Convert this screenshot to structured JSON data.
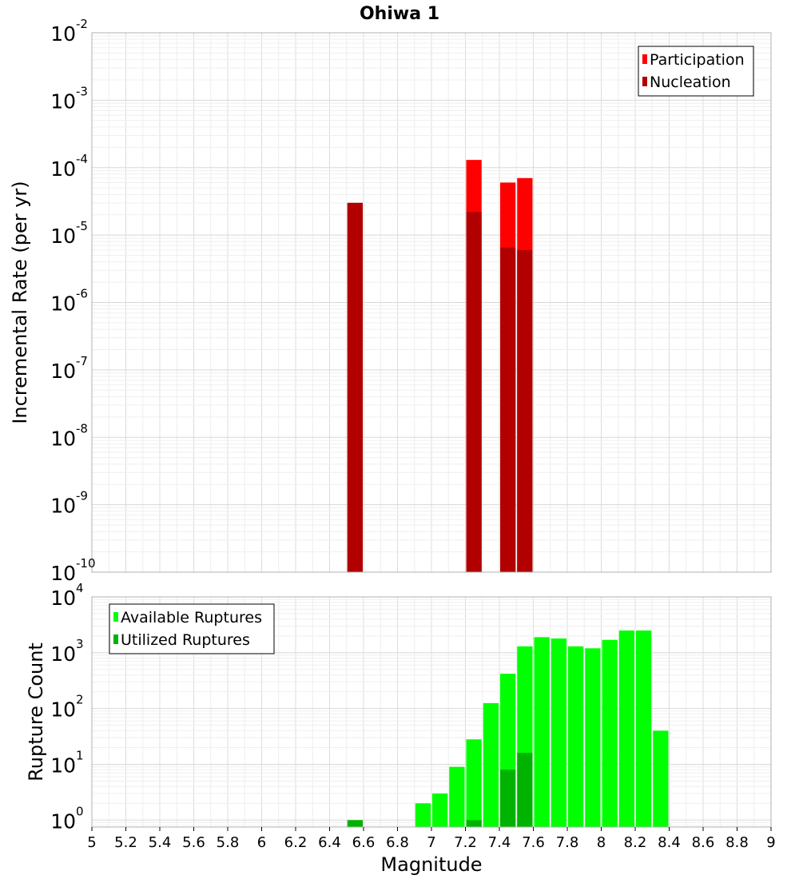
{
  "title": "Ohiwa 1",
  "chart_data": [
    {
      "type": "bar",
      "title": "Ohiwa 1",
      "xlabel": "Magnitude",
      "ylabel": "Incremental Rate (per yr)",
      "xlim": [
        5,
        9
      ],
      "ylim": [
        1e-10,
        0.01
      ],
      "yscale": "log",
      "ytick_exponents": [
        "-10",
        "-9",
        "-8",
        "-7",
        "-6",
        "-5",
        "-4",
        "-3",
        "-2"
      ],
      "ytick_base": "10",
      "bin_width": 0.1,
      "grid": true,
      "legend_position": "top-right",
      "series": [
        {
          "name": "Participation",
          "color": "#ff0000",
          "points": [
            {
              "x": 6.55,
              "y": 3e-05
            },
            {
              "x": 7.25,
              "y": 0.00013
            },
            {
              "x": 7.45,
              "y": 6e-05
            },
            {
              "x": 7.55,
              "y": 7e-05
            }
          ]
        },
        {
          "name": "Nucleation",
          "color": "#b20000",
          "points": [
            {
              "x": 6.55,
              "y": 3e-05
            },
            {
              "x": 7.25,
              "y": 2.2e-05
            },
            {
              "x": 7.45,
              "y": 6.5e-06
            },
            {
              "x": 7.55,
              "y": 6e-06
            }
          ]
        }
      ]
    },
    {
      "type": "bar",
      "xlabel": "Magnitude",
      "ylabel": "Rupture Count",
      "xlim": [
        5,
        9
      ],
      "ylim": [
        0.75,
        10000.0
      ],
      "yscale": "log",
      "ytick_exponents": [
        "0",
        "1",
        "2",
        "3",
        "4"
      ],
      "ytick_base": "10",
      "xticks": [
        "5",
        "5.2",
        "5.4",
        "5.6",
        "5.8",
        "6",
        "6.2",
        "6.4",
        "6.6",
        "6.8",
        "7",
        "7.2",
        "7.4",
        "7.6",
        "7.8",
        "8",
        "8.2",
        "8.4",
        "8.6",
        "8.8",
        "9"
      ],
      "bin_width": 0.1,
      "grid": true,
      "legend_position": "top-left",
      "series": [
        {
          "name": "Available Ruptures",
          "color": "#00ff00",
          "points": [
            {
              "x": 6.95,
              "y": 2
            },
            {
              "x": 7.05,
              "y": 3
            },
            {
              "x": 7.15,
              "y": 9
            },
            {
              "x": 7.25,
              "y": 28
            },
            {
              "x": 7.35,
              "y": 125
            },
            {
              "x": 7.45,
              "y": 420
            },
            {
              "x": 7.55,
              "y": 1300
            },
            {
              "x": 7.65,
              "y": 1900
            },
            {
              "x": 7.75,
              "y": 1800
            },
            {
              "x": 7.85,
              "y": 1300
            },
            {
              "x": 7.95,
              "y": 1200
            },
            {
              "x": 8.05,
              "y": 1700
            },
            {
              "x": 8.15,
              "y": 2500
            },
            {
              "x": 8.25,
              "y": 2500
            },
            {
              "x": 8.35,
              "y": 40
            }
          ]
        },
        {
          "name": "Utilized Ruptures",
          "color": "#00b300",
          "points": [
            {
              "x": 6.55,
              "y": 1
            },
            {
              "x": 7.25,
              "y": 1
            },
            {
              "x": 7.45,
              "y": 8
            },
            {
              "x": 7.55,
              "y": 16
            }
          ]
        }
      ]
    }
  ]
}
